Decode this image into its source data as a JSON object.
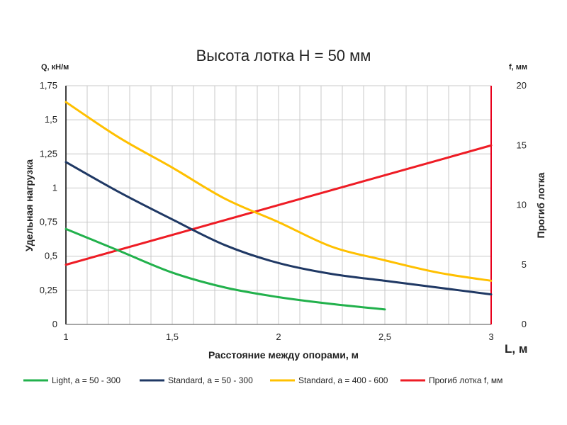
{
  "chart_data": {
    "type": "line",
    "title": "Высота лотка H = 50 мм",
    "xlabel": "Расстояние между опорами, м",
    "x_unit_label": "L, м",
    "ylabel_left": "Удельная нагрузка",
    "ylabel_left_unit": "Q, кН/м",
    "ylabel_right": "Прогиб лотка",
    "ylabel_right_unit": "f, мм",
    "xlim": [
      1,
      3
    ],
    "ylim_left": [
      0,
      1.75
    ],
    "ylim_right": [
      0,
      20
    ],
    "x_ticks": [
      {
        "value": 1,
        "label": "1"
      },
      {
        "value": 1.5,
        "label": "1,5"
      },
      {
        "value": 2,
        "label": "2"
      },
      {
        "value": 2.5,
        "label": "2,5"
      },
      {
        "value": 3,
        "label": "3"
      }
    ],
    "y_left_ticks": [
      {
        "value": 0,
        "label": "0"
      },
      {
        "value": 0.25,
        "label": "0,25"
      },
      {
        "value": 0.5,
        "label": "0,5"
      },
      {
        "value": 0.75,
        "label": "0,75"
      },
      {
        "value": 1,
        "label": "1"
      },
      {
        "value": 1.25,
        "label": "1,25"
      },
      {
        "value": 1.5,
        "label": "1,5"
      },
      {
        "value": 1.75,
        "label": "1,75"
      }
    ],
    "y_right_ticks": [
      {
        "value": 0,
        "label": "0"
      },
      {
        "value": 5,
        "label": "5"
      },
      {
        "value": 10,
        "label": "10"
      },
      {
        "value": 15,
        "label": "15"
      },
      {
        "value": 20,
        "label": "20"
      }
    ],
    "grid": true,
    "legend_position": "bottom",
    "series": [
      {
        "name": "Light,  a = 50 - 300",
        "axis": "left",
        "color": "#22b14c",
        "x": [
          1,
          1.25,
          1.5,
          1.75,
          2,
          2.25,
          2.5
        ],
        "y": [
          0.7,
          0.54,
          0.38,
          0.27,
          0.2,
          0.15,
          0.11
        ]
      },
      {
        "name": "Standard,  a = 50 - 300",
        "axis": "left",
        "color": "#1f3864",
        "x": [
          1,
          1.25,
          1.5,
          1.75,
          2,
          2.25,
          2.5,
          2.75,
          3
        ],
        "y": [
          1.19,
          0.97,
          0.77,
          0.58,
          0.45,
          0.37,
          0.32,
          0.27,
          0.22
        ]
      },
      {
        "name": "Standard,  a = 400 - 600",
        "axis": "left",
        "color": "#ffc000",
        "x": [
          1,
          1.25,
          1.5,
          1.75,
          2,
          2.25,
          2.5,
          2.75,
          3
        ],
        "y": [
          1.63,
          1.37,
          1.15,
          0.92,
          0.75,
          0.57,
          0.47,
          0.38,
          0.32
        ]
      },
      {
        "name": "Прогиб лотка f, мм",
        "axis": "right",
        "color": "#ee1c25",
        "x": [
          1,
          3
        ],
        "y": [
          5,
          15
        ]
      }
    ],
    "axis_colors": {
      "left": "#000000",
      "right": "#e8001c",
      "grid": "#c8c8c8"
    }
  }
}
